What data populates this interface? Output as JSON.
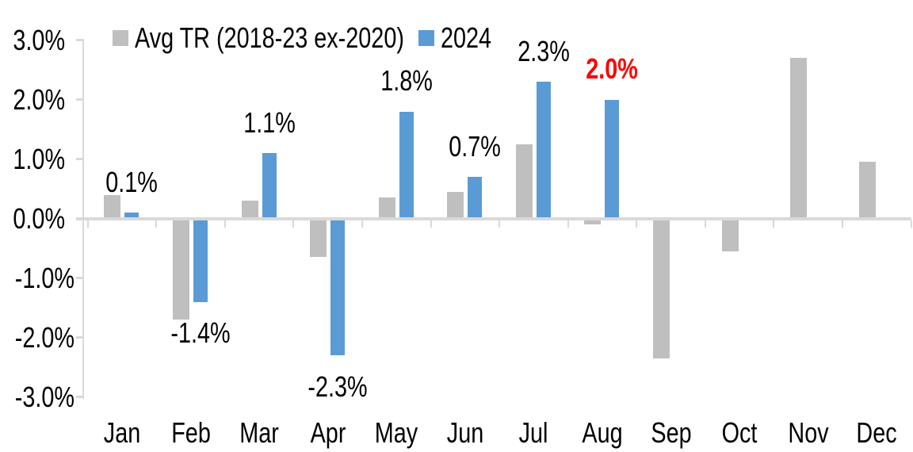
{
  "chart_data": {
    "type": "bar",
    "categories": [
      "Jan",
      "Feb",
      "Mar",
      "Apr",
      "May",
      "Jun",
      "Jul",
      "Aug",
      "Sep",
      "Oct",
      "Nov",
      "Dec"
    ],
    "series": [
      {
        "name": "Avg TR (2018-23 ex-2020)",
        "color": "#BFBFBF",
        "values": [
          0.4,
          -1.7,
          0.3,
          -0.65,
          0.35,
          0.45,
          1.25,
          -0.1,
          -2.35,
          -0.55,
          2.7,
          0.95
        ]
      },
      {
        "name": "2024",
        "color": "#5B9BD5",
        "values": [
          0.1,
          -1.4,
          1.1,
          -2.3,
          1.8,
          0.7,
          2.3,
          2.0,
          null,
          null,
          null,
          null
        ],
        "data_labels": [
          "0.1%",
          "-1.4%",
          "1.1%",
          "-2.3%",
          "1.8%",
          "0.7%",
          "2.3%",
          "2.0%",
          null,
          null,
          null,
          null
        ]
      }
    ],
    "highlight": {
      "month": "Aug",
      "index": 7,
      "label": "2.0%",
      "color": "#FF0000",
      "bold": true
    },
    "y_axis": {
      "min": -3,
      "max": 3,
      "tick_step": 1,
      "tick_labels": [
        "3.0%",
        "2.0%",
        "1.0%",
        "0.0%",
        "-1.0%",
        "-2.0%",
        "-3.0%"
      ]
    },
    "legend_position": "top",
    "grid": false,
    "colors": {
      "axis": "#D9D9D9",
      "text": "#000000",
      "background": "#FFFFFF"
    }
  }
}
